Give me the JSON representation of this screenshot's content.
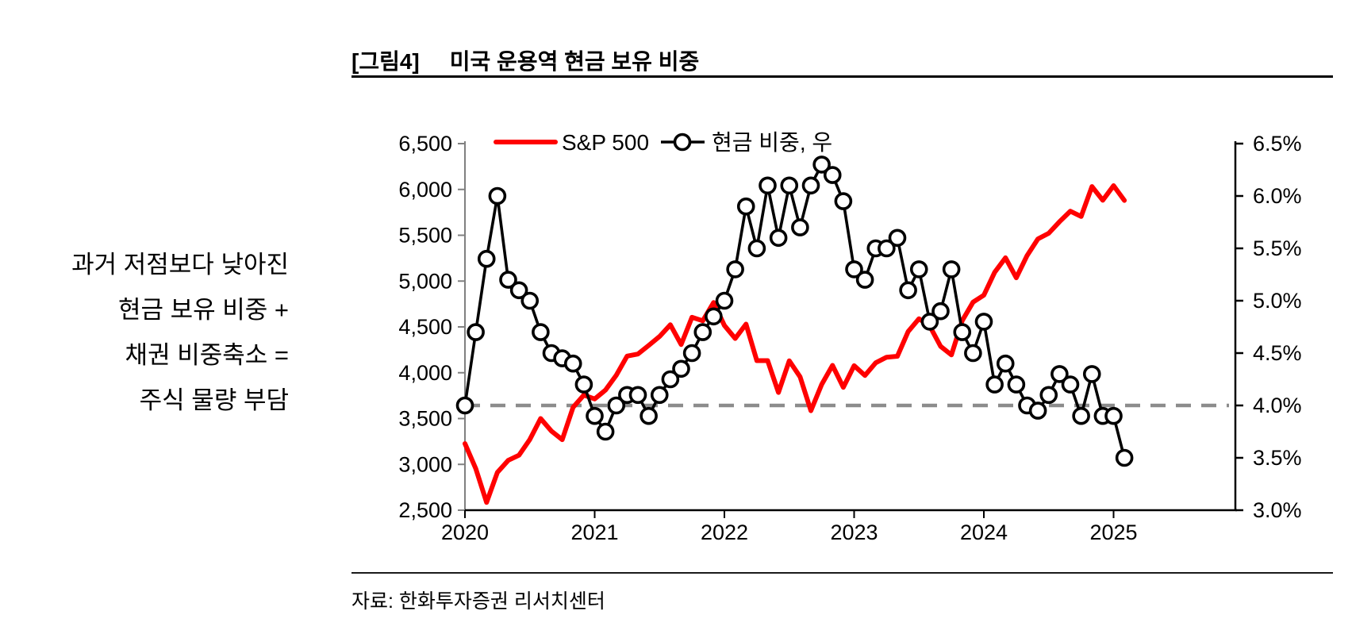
{
  "title": {
    "tag": "[그림4]",
    "text": "미국 운용역 현금 보유 비중"
  },
  "side_note": {
    "lines": [
      "과거 저점보다 낮아진",
      "현금 보유 비중 +",
      "채권 비중축소 =",
      "주식 물량 부담"
    ]
  },
  "source": "자료: 한화투자증권 리서치센터",
  "colors": {
    "sp500_line": "#FF0000",
    "cash_line": "#000000",
    "marker_fill": "#FFFFFF",
    "reference_dash": "#8C8C8C",
    "left_spine": "#808080",
    "axis_black": "#000000"
  },
  "chart_data": {
    "type": "line",
    "title": "미국 운용역 현금 보유 비중",
    "x_start": "2020-01",
    "x_end": "2025-02",
    "x_tick_labels": [
      "2020",
      "2021",
      "2022",
      "2023",
      "2024",
      "2025"
    ],
    "left_axis": {
      "min": 2500,
      "max": 6500,
      "step": 500,
      "tick_labels": [
        "6,500",
        "6,000",
        "5,500",
        "5,000",
        "4,500",
        "4,000",
        "3,500",
        "3,000",
        "2,500"
      ]
    },
    "right_axis": {
      "min": 3.0,
      "max": 6.5,
      "step": 0.5,
      "tick_labels": [
        "6.5%",
        "6.0%",
        "5.5%",
        "5.0%",
        "4.5%",
        "4.0%",
        "3.5%",
        "3.0%"
      ]
    },
    "reference_line": {
      "axis": "right",
      "value": 4.0,
      "style": "dashed"
    },
    "legend_position": "top",
    "series": [
      {
        "name": "S&P 500",
        "axis": "left",
        "color": "#FF0000",
        "marker": "none",
        "values": [
          3226,
          2954,
          2585,
          2912,
          3044,
          3100,
          3271,
          3500,
          3363,
          3270,
          3622,
          3756,
          3714,
          3811,
          3973,
          4181,
          4204,
          4298,
          4395,
          4523,
          4308,
          4605,
          4567,
          4766,
          4516,
          4374,
          4530,
          4132,
          4132,
          3785,
          4130,
          3955,
          3586,
          3872,
          4080,
          3840,
          4077,
          3970,
          4109,
          4169,
          4180,
          4450,
          4589,
          4508,
          4288,
          4194,
          4568,
          4770,
          4846,
          5096,
          5254,
          5036,
          5278,
          5460,
          5522,
          5648,
          5762,
          5705,
          6032,
          5882,
          6041,
          5880
        ]
      },
      {
        "name": "현금 비중, 우",
        "axis": "right",
        "color": "#000000",
        "marker": "circle",
        "values": [
          4.0,
          4.7,
          5.4,
          6.0,
          5.2,
          5.1,
          5.0,
          4.7,
          4.5,
          4.45,
          4.4,
          4.2,
          3.9,
          3.75,
          4.0,
          4.1,
          4.1,
          3.9,
          4.1,
          4.25,
          4.35,
          4.5,
          4.7,
          4.85,
          5.0,
          5.3,
          5.9,
          5.5,
          6.1,
          5.6,
          6.1,
          5.7,
          6.1,
          6.3,
          6.2,
          5.95,
          5.3,
          5.2,
          5.5,
          5.5,
          5.6,
          5.1,
          5.3,
          4.8,
          4.9,
          5.3,
          4.7,
          4.5,
          4.8,
          4.2,
          4.4,
          4.2,
          4.0,
          3.95,
          4.1,
          4.3,
          4.2,
          3.9,
          4.3,
          3.9,
          3.9,
          3.5
        ]
      }
    ]
  }
}
